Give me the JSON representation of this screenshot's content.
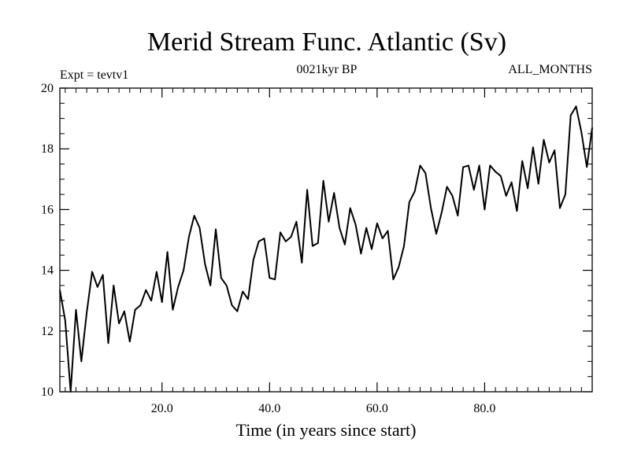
{
  "chart_data": {
    "type": "line",
    "title": "Merid Stream Func. Atlantic (Sv)",
    "subtitle_left": "Expt = tevtv1",
    "subtitle_center": "0021kyr BP",
    "subtitle_right": "ALL_MONTHS",
    "xlabel": "Time (in years since start)",
    "ylabel": "",
    "xlim": [
      1,
      100
    ],
    "ylim": [
      10,
      20
    ],
    "x_ticks": [
      20,
      40,
      60,
      80
    ],
    "x_tick_labels": [
      "20.0",
      "40.0",
      "60.0",
      "80.0"
    ],
    "y_ticks": [
      10,
      12,
      14,
      16,
      18,
      20
    ],
    "y_tick_labels": [
      "10",
      "12",
      "14",
      "16",
      "18",
      "20"
    ],
    "series": [
      {
        "name": "tevtv1",
        "x": [
          1,
          2,
          3,
          4,
          5,
          6,
          7,
          8,
          9,
          10,
          11,
          12,
          13,
          14,
          15,
          16,
          17,
          18,
          19,
          20,
          21,
          22,
          23,
          24,
          25,
          26,
          27,
          28,
          29,
          30,
          31,
          32,
          33,
          34,
          35,
          36,
          37,
          38,
          39,
          40,
          41,
          42,
          43,
          44,
          45,
          46,
          47,
          48,
          49,
          50,
          51,
          52,
          53,
          54,
          55,
          56,
          57,
          58,
          59,
          60,
          61,
          62,
          63,
          64,
          65,
          66,
          67,
          68,
          69,
          70,
          71,
          72,
          73,
          74,
          75,
          76,
          77,
          78,
          79,
          80,
          81,
          82,
          83,
          84,
          85,
          86,
          87,
          88,
          89,
          90,
          91,
          92,
          93,
          94,
          95,
          96,
          97,
          98,
          99,
          100
        ],
        "values": [
          13.35,
          12.35,
          10.0,
          12.7,
          11.0,
          12.6,
          13.95,
          13.45,
          13.85,
          11.6,
          13.5,
          12.25,
          12.65,
          11.65,
          12.7,
          12.85,
          13.35,
          13.0,
          13.95,
          12.95,
          14.6,
          12.7,
          13.45,
          14.0,
          15.1,
          15.8,
          15.4,
          14.2,
          13.5,
          15.35,
          13.75,
          13.5,
          12.85,
          12.65,
          13.3,
          13.05,
          14.35,
          14.95,
          15.05,
          13.75,
          13.7,
          15.25,
          14.95,
          15.1,
          15.6,
          14.25,
          16.65,
          14.8,
          14.9,
          16.95,
          15.6,
          16.55,
          15.4,
          14.85,
          16.05,
          15.5,
          14.55,
          15.4,
          14.7,
          15.55,
          15.05,
          15.3,
          13.7,
          14.1,
          14.8,
          16.25,
          16.6,
          17.45,
          17.2,
          16.05,
          15.2,
          15.9,
          16.75,
          16.45,
          15.8,
          17.4,
          17.45,
          16.65,
          17.45,
          16.0,
          17.45,
          17.25,
          17.1,
          16.45,
          16.9,
          15.95,
          17.6,
          16.7,
          18.05,
          16.85,
          18.3,
          17.55,
          17.95,
          16.05,
          16.5,
          19.1,
          19.4,
          18.55,
          17.4,
          18.7
        ]
      }
    ]
  }
}
